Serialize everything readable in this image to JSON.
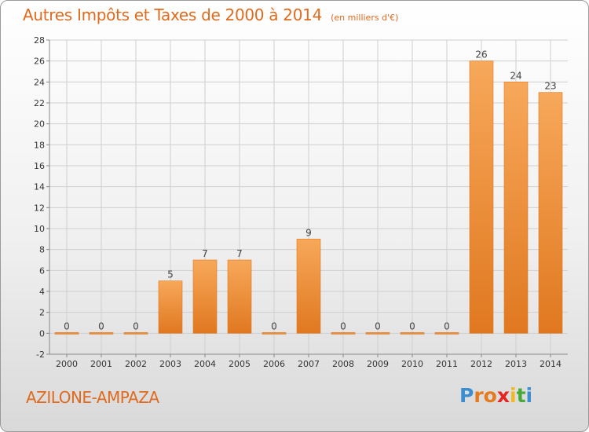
{
  "header": {
    "title": "Autres Impôts et Taxes de 2000 à 2014",
    "unit": "(en milliers d'€)"
  },
  "footer": {
    "place": "AZILONE-AMPAZA",
    "logo_letters": [
      "P",
      "r",
      "o",
      "x",
      "i",
      "t",
      "i"
    ],
    "logo_colors": [
      "#3b8ed0",
      "#e57a1e",
      "#e57a1e",
      "#e52521",
      "#f1b820",
      "#4aa83a",
      "#3b8ed0"
    ]
  },
  "colors": {
    "bar_light": "#f7a85a",
    "bar_dark": "#e07820",
    "grid": "#cfcfcf",
    "axis": "#888888"
  },
  "chart_data": {
    "type": "bar",
    "title": "Autres Impôts et Taxes de 2000 à 2014",
    "subtitle": "(en milliers d'€)",
    "xlabel": "",
    "ylabel": "",
    "categories": [
      "2000",
      "2001",
      "2002",
      "2003",
      "2004",
      "2005",
      "2006",
      "2007",
      "2008",
      "2009",
      "2010",
      "2011",
      "2012",
      "2013",
      "2014"
    ],
    "values": [
      0,
      0,
      0,
      5,
      7,
      7,
      0,
      9,
      0,
      0,
      0,
      0,
      26,
      24,
      23
    ],
    "data_labels": [
      "0",
      "0",
      "0",
      "5",
      "7",
      "7",
      "0",
      "9",
      "0",
      "0",
      "0",
      "0",
      "26",
      "24",
      "23"
    ],
    "ylim": [
      -2,
      28
    ],
    "yticks": [
      -2,
      0,
      2,
      4,
      6,
      8,
      10,
      12,
      14,
      16,
      18,
      20,
      22,
      24,
      26,
      28
    ],
    "grid": true,
    "legend": "none"
  }
}
